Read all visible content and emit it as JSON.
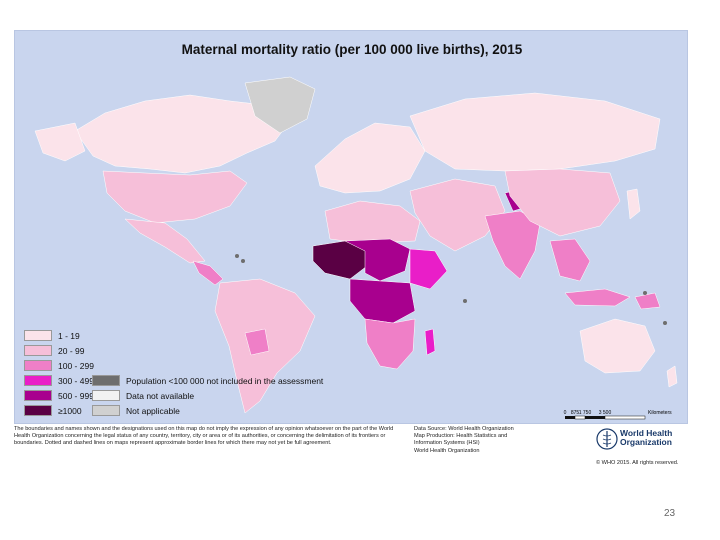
{
  "map": {
    "title": "Maternal mortality ratio (per 100 000 live births), 2015",
    "colors": {
      "ocean": "#c9d5ee",
      "c1_19": "#fbe3ea",
      "c20_99": "#f6bfd9",
      "c100_299": "#ef7fc7",
      "c300_499": "#e91ec8",
      "c500_999": "#a8008e",
      "c1000": "#5a0044",
      "pop_small": "#6e6e6e",
      "not_available": "#f2f2f2",
      "not_applicable": "#d0d0d0"
    }
  },
  "legend": {
    "items": [
      {
        "label": "1 - 19",
        "color": "#fbe3ea"
      },
      {
        "label": "20 - 99",
        "color": "#f6bfd9"
      },
      {
        "label": "100 - 299",
        "color": "#ef7fc7"
      },
      {
        "label": "300 - 499",
        "color": "#e91ec8"
      },
      {
        "label": "500 - 999",
        "color": "#a8008e"
      },
      {
        "label": "≥1000",
        "color": "#5a0044"
      }
    ],
    "extra": [
      {
        "label": "Population <100 000 not included in the assessment",
        "color": "#6e6e6e"
      },
      {
        "label": "Data not available",
        "color": "#f2f2f2"
      },
      {
        "label": "Not applicable",
        "color": "#d0d0d0"
      }
    ]
  },
  "scale": {
    "ticks": [
      "0",
      "875",
      "1 750",
      "3 500"
    ],
    "unit": "Kilometers"
  },
  "footer": {
    "disclaimer": "The boundaries and names shown and the designations used on this map do not imply the expression of any opinion whatsoever on the part of the World Health Organization concerning the legal status of any country, territory, city or area or of its authorities, or concerning the delimitation of its frontiers or boundaries. Dotted and dashed lines on maps represent approximate border lines for which there may not yet be full agreement.",
    "source_lines": [
      "Data Source: World Health Organization",
      "Map Production: Health Statistics and",
      "Information Systems (HSI)",
      "World Health Organization"
    ],
    "who_name_line1": "World Health",
    "who_name_line2": "Organization",
    "copyright": "© WHO 2015. All rights reserved."
  },
  "slide": {
    "page_number": "23"
  }
}
